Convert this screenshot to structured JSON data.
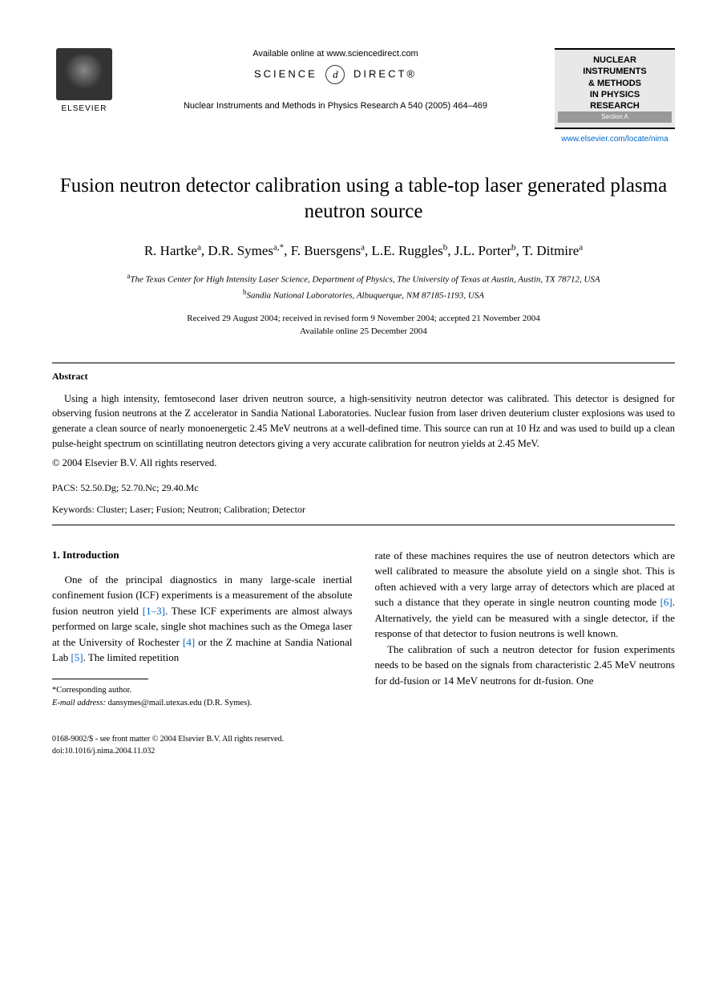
{
  "header": {
    "elsevier_label": "ELSEVIER",
    "available_online": "Available online at www.sciencedirect.com",
    "science_direct_left": "SCIENCE",
    "science_direct_icon": "d",
    "science_direct_right": "DIRECT®",
    "journal_ref": "Nuclear Instruments and Methods in Physics Research A 540 (2005) 464–469",
    "journal_box": {
      "line1": "NUCLEAR",
      "line2": "INSTRUMENTS",
      "line3": "& METHODS",
      "line4": "IN PHYSICS",
      "line5": "RESEARCH",
      "section": "Section A"
    },
    "journal_url": "www.elsevier.com/locate/nima"
  },
  "title": "Fusion neutron detector calibration using a table-top laser generated plasma neutron source",
  "authors_html": "R. Hartke<sup>a</sup>, D.R. Symes<sup>a,*</sup>, F. Buersgens<sup>a</sup>, L.E. Ruggles<sup>b</sup>, J.L. Porter<sup>b</sup>, T. Ditmire<sup>a</sup>",
  "affiliations": {
    "a": "The Texas Center for High Intensity Laser Science, Department of Physics, The University of Texas at Austin, Austin, TX 78712, USA",
    "b": "Sandia National Laboratories, Albuquerque, NM 87185-1193, USA"
  },
  "dates": {
    "received": "Received 29 August 2004; received in revised form 9 November 2004; accepted 21 November 2004",
    "online": "Available online 25 December 2004"
  },
  "abstract": {
    "heading": "Abstract",
    "text": "Using a high intensity, femtosecond laser driven neutron source, a high-sensitivity neutron detector was calibrated. This detector is designed for observing fusion neutrons at the Z accelerator in Sandia National Laboratories. Nuclear fusion from laser driven deuterium cluster explosions was used to generate a clean source of nearly monoenergetic 2.45 MeV neutrons at a well-defined time. This source can run at 10 Hz and was used to build up a clean pulse-height spectrum on scintillating neutron detectors giving a very accurate calibration for neutron yields at 2.45 MeV.",
    "copyright": "© 2004 Elsevier B.V. All rights reserved."
  },
  "pacs": {
    "label": "PACS:",
    "value": "52.50.Dg; 52.70.Nc; 29.40.Mc"
  },
  "keywords": {
    "label": "Keywords:",
    "value": "Cluster; Laser; Fusion; Neutron; Calibration; Detector"
  },
  "section1": {
    "heading": "1. Introduction",
    "col1_p1_pre": "One of the principal diagnostics in many large-scale inertial confinement fusion (ICF) experiments is a measurement of the absolute fusion neutron yield ",
    "ref1": "[1–3]",
    "col1_p1_mid1": ". These ICF experiments are almost always performed on large scale, single shot machines such as the Omega laser at the University of Rochester ",
    "ref2": "[4]",
    "col1_p1_mid2": " or the Z machine at Sandia National Lab ",
    "ref3": "[5]",
    "col1_p1_post": ". The limited repetition",
    "col2_p1_pre": "rate of these machines requires the use of neutron detectors which are well calibrated to measure the absolute yield on a single shot. This is often achieved with a very large array of detectors which are placed at such a distance that they operate in single neutron counting mode ",
    "ref4": "[6]",
    "col2_p1_post": ". Alternatively, the yield can be measured with a single detector, if the response of that detector to fusion neutrons is well known.",
    "col2_p2": "The calibration of such a neutron detector for fusion experiments needs to be based on the signals from characteristic 2.45 MeV neutrons for dd-fusion or 14 MeV neutrons for dt-fusion. One"
  },
  "footnote": {
    "corresponding": "*Corresponding author.",
    "email_label": "E-mail address:",
    "email": "dansymes@mail.utexas.edu (D.R. Symes)."
  },
  "footer": {
    "line1": "0168-9002/$ - see front matter © 2004 Elsevier B.V. All rights reserved.",
    "line2": "doi:10.1016/j.nima.2004.11.032"
  }
}
